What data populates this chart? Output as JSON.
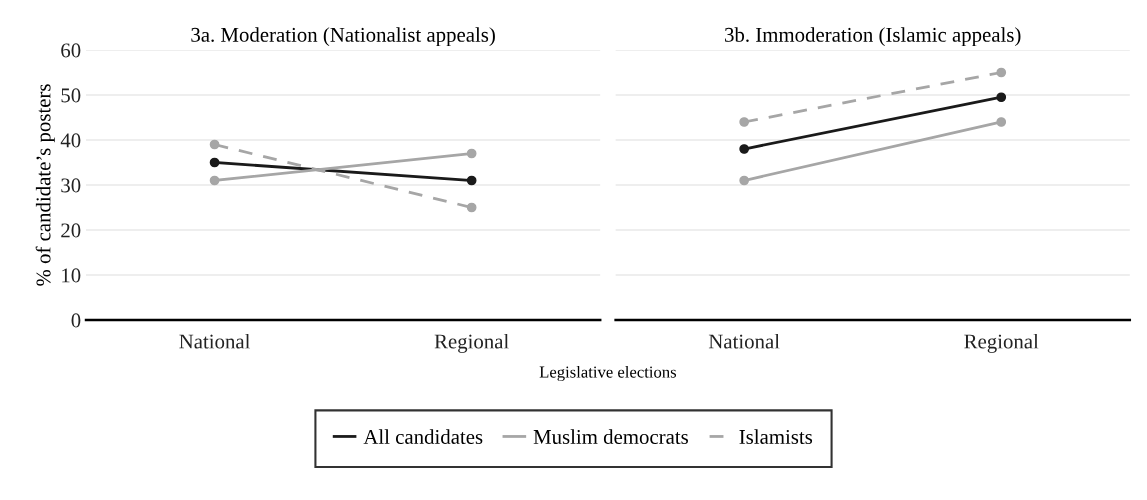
{
  "chart_data": [
    {
      "type": "line",
      "title": "3a. Moderation (Nationalist appeals)",
      "ylabel": "% of candidate’s posters",
      "xlabel": "Legislative elections",
      "categories": [
        "National",
        "Regional"
      ],
      "ylim": [
        0,
        60
      ],
      "yticks": [
        0,
        10,
        20,
        30,
        40,
        50,
        60
      ],
      "grid": "y",
      "legend": "bottom",
      "marker": "circle",
      "series": [
        {
          "name": "All candidates",
          "color": "#1a1a1a",
          "values": [
            35,
            31
          ],
          "line_style": "solid"
        },
        {
          "name": "Muslim democrats",
          "color": "#a6a6a6",
          "values": [
            31,
            37
          ],
          "line_style": "solid"
        },
        {
          "name": "Islamists",
          "color": "#a6a6a6",
          "values": [
            39,
            25
          ],
          "line_style": "dashed"
        }
      ]
    },
    {
      "type": "line",
      "title": "3b. Immoderation (Islamic appeals)",
      "categories": [
        "National",
        "Regional"
      ],
      "ylim": [
        0,
        60
      ],
      "yticks": [
        0,
        10,
        20,
        30,
        40,
        50,
        60
      ],
      "grid": "y",
      "tick_labels": "x",
      "marker": "circle",
      "series": [
        {
          "color": "#1a1a1a",
          "values": [
            38,
            49.5
          ],
          "line_style": "solid"
        },
        {
          "color": "#a6a6a6",
          "values": [
            31,
            44
          ],
          "line_style": "solid"
        },
        {
          "color": "#a6a6a6",
          "values": [
            44,
            55
          ],
          "line_style": "dashed"
        }
      ]
    }
  ]
}
